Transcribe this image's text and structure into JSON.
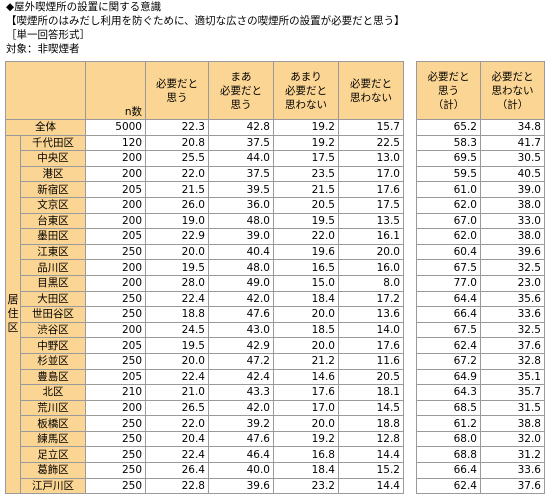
{
  "header": {
    "title": "◆屋外喫煙所の設置に関する意識",
    "statement": "【喫煙所のはみだし利用を防ぐために、適切な広さの喫煙所の設置が必要だと思う】",
    "format": "［単一回答形式］",
    "target": "対象：非喫煙者"
  },
  "columns": {
    "n": "n数",
    "c1": [
      "必要だと",
      "思う"
    ],
    "c2": [
      "まあ",
      "必要だと",
      "思う"
    ],
    "c3": [
      "あまり",
      "必要だと",
      "思わない"
    ],
    "c4": [
      "必要だと",
      "思わない"
    ],
    "s1": [
      "必要だと",
      "思う",
      "（計）"
    ],
    "s2": [
      "必要だと",
      "思わない",
      "（計）"
    ]
  },
  "region_label": [
    "居",
    "住",
    "区"
  ],
  "rows": [
    {
      "label": "全体",
      "n": "5000",
      "v": [
        "22.3",
        "42.8",
        "19.2",
        "15.7"
      ],
      "s": [
        "65.2",
        "34.8"
      ]
    },
    {
      "label": "千代田区",
      "n": "120",
      "v": [
        "20.8",
        "37.5",
        "19.2",
        "22.5"
      ],
      "s": [
        "58.3",
        "41.7"
      ]
    },
    {
      "label": "中央区",
      "n": "200",
      "v": [
        "25.5",
        "44.0",
        "17.5",
        "13.0"
      ],
      "s": [
        "69.5",
        "30.5"
      ]
    },
    {
      "label": "港区",
      "n": "200",
      "v": [
        "22.0",
        "37.5",
        "23.5",
        "17.0"
      ],
      "s": [
        "59.5",
        "40.5"
      ]
    },
    {
      "label": "新宿区",
      "n": "205",
      "v": [
        "21.5",
        "39.5",
        "21.5",
        "17.6"
      ],
      "s": [
        "61.0",
        "39.0"
      ]
    },
    {
      "label": "文京区",
      "n": "200",
      "v": [
        "26.0",
        "36.0",
        "20.5",
        "17.5"
      ],
      "s": [
        "62.0",
        "38.0"
      ]
    },
    {
      "label": "台東区",
      "n": "200",
      "v": [
        "19.0",
        "48.0",
        "19.5",
        "13.5"
      ],
      "s": [
        "67.0",
        "33.0"
      ]
    },
    {
      "label": "墨田区",
      "n": "205",
      "v": [
        "22.9",
        "39.0",
        "22.0",
        "16.1"
      ],
      "s": [
        "62.0",
        "38.0"
      ]
    },
    {
      "label": "江東区",
      "n": "250",
      "v": [
        "20.0",
        "40.4",
        "19.6",
        "20.0"
      ],
      "s": [
        "60.4",
        "39.6"
      ]
    },
    {
      "label": "品川区",
      "n": "200",
      "v": [
        "19.5",
        "48.0",
        "16.5",
        "16.0"
      ],
      "s": [
        "67.5",
        "32.5"
      ]
    },
    {
      "label": "目黒区",
      "n": "200",
      "v": [
        "28.0",
        "49.0",
        "15.0",
        "8.0"
      ],
      "s": [
        "77.0",
        "23.0"
      ]
    },
    {
      "label": "大田区",
      "n": "250",
      "v": [
        "22.4",
        "42.0",
        "18.4",
        "17.2"
      ],
      "s": [
        "64.4",
        "35.6"
      ]
    },
    {
      "label": "世田谷区",
      "n": "250",
      "v": [
        "18.8",
        "47.6",
        "20.0",
        "13.6"
      ],
      "s": [
        "66.4",
        "33.6"
      ]
    },
    {
      "label": "渋谷区",
      "n": "200",
      "v": [
        "24.5",
        "43.0",
        "18.5",
        "14.0"
      ],
      "s": [
        "67.5",
        "32.5"
      ]
    },
    {
      "label": "中野区",
      "n": "205",
      "v": [
        "19.5",
        "42.9",
        "20.0",
        "17.6"
      ],
      "s": [
        "62.4",
        "37.6"
      ]
    },
    {
      "label": "杉並区",
      "n": "250",
      "v": [
        "20.0",
        "47.2",
        "21.2",
        "11.6"
      ],
      "s": [
        "67.2",
        "32.8"
      ]
    },
    {
      "label": "豊島区",
      "n": "205",
      "v": [
        "22.4",
        "42.4",
        "14.6",
        "20.5"
      ],
      "s": [
        "64.9",
        "35.1"
      ]
    },
    {
      "label": "北区",
      "n": "210",
      "v": [
        "21.0",
        "43.3",
        "17.6",
        "18.1"
      ],
      "s": [
        "64.3",
        "35.7"
      ]
    },
    {
      "label": "荒川区",
      "n": "200",
      "v": [
        "26.5",
        "42.0",
        "17.0",
        "14.5"
      ],
      "s": [
        "68.5",
        "31.5"
      ]
    },
    {
      "label": "板橋区",
      "n": "250",
      "v": [
        "22.0",
        "39.2",
        "20.0",
        "18.8"
      ],
      "s": [
        "61.2",
        "38.8"
      ]
    },
    {
      "label": "練馬区",
      "n": "250",
      "v": [
        "20.4",
        "47.6",
        "19.2",
        "12.8"
      ],
      "s": [
        "68.0",
        "32.0"
      ]
    },
    {
      "label": "足立区",
      "n": "250",
      "v": [
        "22.4",
        "46.4",
        "16.8",
        "14.4"
      ],
      "s": [
        "68.8",
        "31.2"
      ]
    },
    {
      "label": "葛飾区",
      "n": "250",
      "v": [
        "26.4",
        "40.0",
        "18.4",
        "15.2"
      ],
      "s": [
        "66.4",
        "33.6"
      ]
    },
    {
      "label": "江戸川区",
      "n": "250",
      "v": [
        "22.8",
        "39.6",
        "23.2",
        "14.4"
      ],
      "s": [
        "62.4",
        "37.6"
      ]
    }
  ]
}
